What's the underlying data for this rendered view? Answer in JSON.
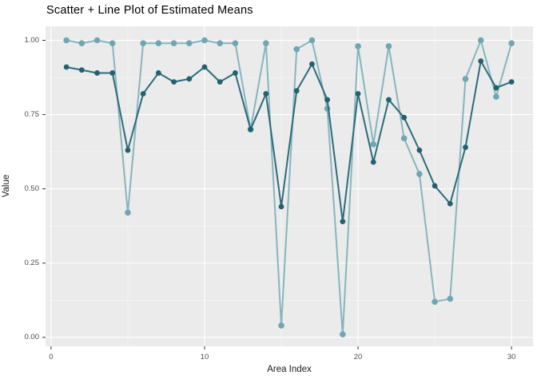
{
  "chart_data": {
    "type": "line",
    "title": "Scatter + Line Plot of Estimated Means",
    "xlabel": "Area Index",
    "ylabel": "Value",
    "x": [
      1,
      2,
      3,
      4,
      5,
      6,
      7,
      8,
      9,
      10,
      11,
      12,
      13,
      14,
      15,
      16,
      17,
      18,
      19,
      20,
      21,
      22,
      23,
      24,
      25,
      26,
      27,
      28,
      29,
      30
    ],
    "series": [
      {
        "name": "light-teal-series",
        "color": "#87B5BE",
        "point_color": "#6FA6B2",
        "point_radius": 3.8,
        "line_width": 2,
        "values": [
          1.0,
          0.99,
          1.0,
          0.99,
          0.42,
          0.99,
          0.99,
          0.99,
          0.99,
          1.0,
          0.99,
          0.99,
          0.7,
          0.99,
          0.04,
          0.97,
          1.0,
          0.77,
          0.01,
          0.98,
          0.65,
          0.98,
          0.67,
          0.55,
          0.12,
          0.13,
          0.87,
          1.0,
          0.81,
          0.99
        ]
      },
      {
        "name": "dark-teal-series",
        "color": "#2C6C7A",
        "point_color": "#24616F",
        "point_radius": 3.4,
        "line_width": 2,
        "values": [
          0.91,
          0.9,
          0.89,
          0.89,
          0.63,
          0.82,
          0.89,
          0.86,
          0.87,
          0.91,
          0.86,
          0.89,
          0.7,
          0.82,
          0.44,
          0.83,
          0.92,
          0.8,
          0.39,
          0.82,
          0.59,
          0.8,
          0.74,
          0.63,
          0.51,
          0.45,
          0.64,
          0.93,
          0.84,
          0.86
        ]
      }
    ],
    "x_ticks": {
      "values": [
        0,
        10,
        20,
        30
      ],
      "labels": [
        "0",
        "10",
        "20",
        "30"
      ]
    },
    "y_ticks": {
      "values": [
        0,
        0.25,
        0.5,
        0.75,
        1
      ],
      "labels": [
        "0.00",
        "0.25",
        "0.50",
        "0.75",
        "1.00"
      ]
    },
    "x_minor": [
      5,
      15,
      25
    ],
    "y_minor": [
      0.125,
      0.375,
      0.625,
      0.875
    ],
    "xlim": [
      -0.36,
      31.4
    ],
    "ylim": [
      -0.03,
      1.047
    ],
    "grid": "major-and-minor",
    "legend": "none",
    "theme": {
      "panel_bg": "#EBEBEB",
      "grid_major": "#FFFFFF",
      "grid_minor": "#FFFFFF",
      "tick_mark_color": "#333333",
      "tick_label_color": "#4D4D4D",
      "outer_bg": "#FFFFFF"
    }
  }
}
